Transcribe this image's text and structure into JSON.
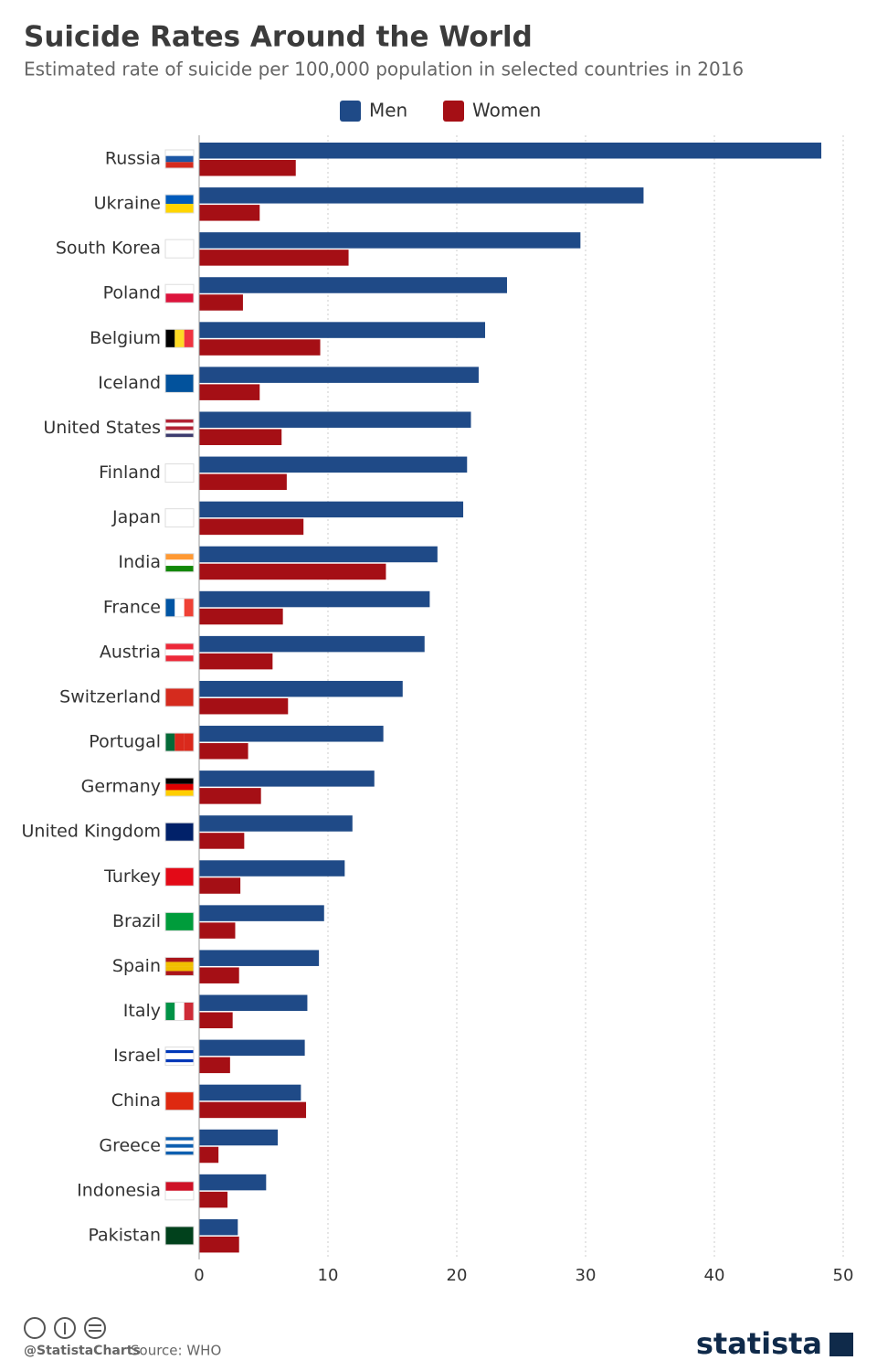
{
  "chart_data": {
    "type": "hbar",
    "title": "Suicide Rates Around the World",
    "subtitle": "Estimated rate of suicide per 100,000 population in selected countries in 2016",
    "categories": [
      "Russia",
      "Ukraine",
      "South Korea",
      "Poland",
      "Belgium",
      "Iceland",
      "United States",
      "Finland",
      "Japan",
      "India",
      "France",
      "Austria",
      "Switzerland",
      "Portugal",
      "Germany",
      "United Kingdom",
      "Turkey",
      "Brazil",
      "Spain",
      "Italy",
      "Israel",
      "China",
      "Greece",
      "Indonesia",
      "Pakistan"
    ],
    "series": [
      {
        "name": "Men",
        "color": "#1f4a87",
        "values": [
          48.3,
          34.5,
          29.6,
          23.9,
          22.2,
          21.7,
          21.1,
          20.8,
          20.5,
          18.5,
          17.9,
          17.5,
          15.8,
          14.3,
          13.6,
          11.9,
          11.3,
          9.7,
          9.3,
          8.4,
          8.2,
          7.9,
          6.1,
          5.2,
          3.0
        ]
      },
      {
        "name": "Women",
        "color": "#a50f15",
        "values": [
          7.5,
          4.7,
          11.6,
          3.4,
          9.4,
          4.7,
          6.4,
          6.8,
          8.1,
          14.5,
          6.5,
          5.7,
          6.9,
          3.8,
          4.8,
          3.5,
          3.2,
          2.8,
          3.1,
          2.6,
          2.4,
          8.3,
          1.5,
          2.2,
          3.1
        ]
      }
    ],
    "xlim": [
      0,
      50
    ],
    "xticks": [
      0,
      10,
      20,
      30,
      40,
      50
    ],
    "grid": true
  },
  "footer": {
    "handle": "@StatistaCharts",
    "source": "Source: WHO",
    "logo": "statista"
  }
}
